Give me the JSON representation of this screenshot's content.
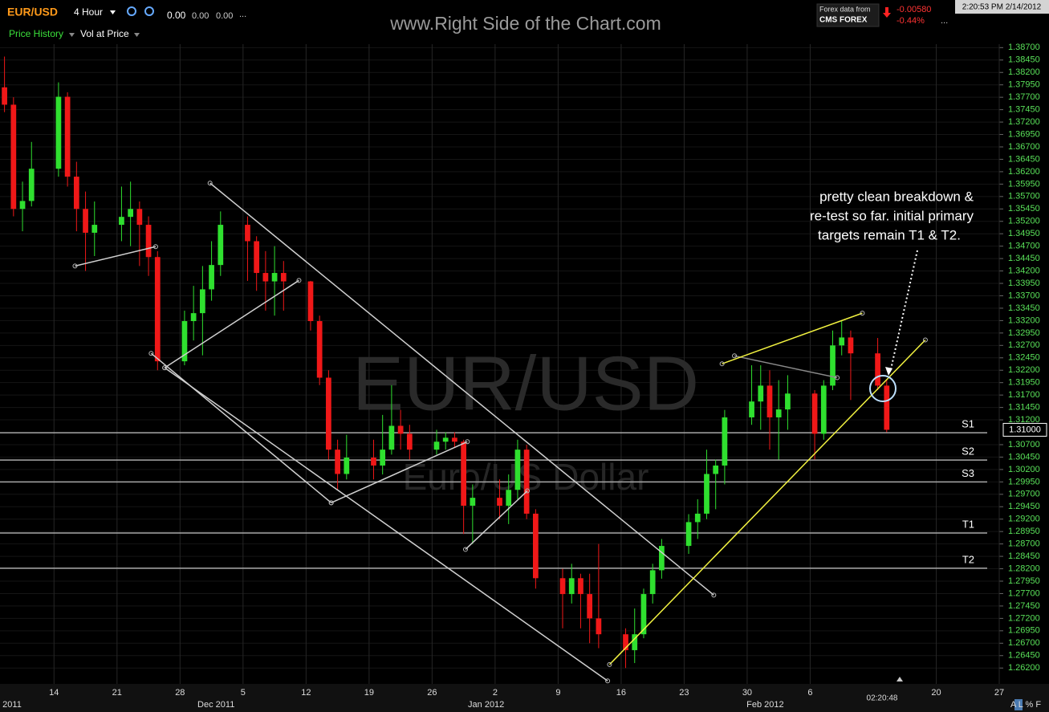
{
  "toolbar": {
    "symbol": "EUR/USD",
    "interval": "4 Hour",
    "stats": [
      "0.00",
      "0.00",
      "0.00",
      "..."
    ],
    "tab_price": "Price History",
    "tab_vol": "Vol at Price",
    "site": "www.Right Side of the Chart.com",
    "data_from": "Forex data from",
    "provider": "CMS FOREX",
    "change": "-0.00580",
    "change_pct": "-0.44%",
    "more": "...",
    "clock": "2:20:53 PM 2/14/2012"
  },
  "chart_data": {
    "type": "candlestick",
    "watermark": "EUR/USD",
    "watermark_sub": "Euro/US Dollar",
    "xlim": [
      "2011-11-08",
      "2012-02-27"
    ],
    "ylim": [
      1.2588,
      1.3877
    ],
    "xticks": [
      {
        "value": "2011-11-14",
        "label": "14"
      },
      {
        "value": "2011-11-21",
        "label": "21"
      },
      {
        "value": "2011-11-28",
        "label": "28"
      },
      {
        "value": "2011-12-05",
        "label": "5"
      },
      {
        "value": "2011-12-12",
        "label": "12"
      },
      {
        "value": "2011-12-19",
        "label": "19"
      },
      {
        "value": "2011-12-26",
        "label": "26"
      },
      {
        "value": "2012-01-02",
        "label": "2"
      },
      {
        "value": "2012-01-09",
        "label": "9"
      },
      {
        "value": "2012-01-16",
        "label": "16"
      },
      {
        "value": "2012-01-23",
        "label": "23"
      },
      {
        "value": "2012-01-30",
        "label": "30"
      },
      {
        "value": "2012-02-06",
        "label": "6"
      },
      {
        "value": "2012-02-20",
        "label": "20"
      },
      {
        "value": "2012-02-27",
        "label": "27"
      }
    ],
    "month_labels": [
      {
        "value": "2011-11-09",
        "label": "2011"
      },
      {
        "value": "2011-12-02",
        "label": "Dec 2011"
      },
      {
        "value": "2012-01-01",
        "label": "Jan 2012"
      },
      {
        "value": "2012-02-01",
        "label": "Feb 2012"
      }
    ],
    "yticks": [
      {
        "value": 1.387,
        "label": "1.38700"
      },
      {
        "value": 1.3845,
        "label": "1.38450"
      },
      {
        "value": 1.382,
        "label": "1.38200"
      },
      {
        "value": 1.3795,
        "label": "1.37950"
      },
      {
        "value": 1.377,
        "label": "1.37700"
      },
      {
        "value": 1.3745,
        "label": "1.37450"
      },
      {
        "value": 1.372,
        "label": "1.37200"
      },
      {
        "value": 1.3695,
        "label": "1.36950"
      },
      {
        "value": 1.367,
        "label": "1.36700"
      },
      {
        "value": 1.3645,
        "label": "1.36450"
      },
      {
        "value": 1.362,
        "label": "1.36200"
      },
      {
        "value": 1.3595,
        "label": "1.35950"
      },
      {
        "value": 1.357,
        "label": "1.35700"
      },
      {
        "value": 1.3545,
        "label": "1.35450"
      },
      {
        "value": 1.352,
        "label": "1.35200"
      },
      {
        "value": 1.3495,
        "label": "1.34950"
      },
      {
        "value": 1.347,
        "label": "1.34700"
      },
      {
        "value": 1.3445,
        "label": "1.34450"
      },
      {
        "value": 1.342,
        "label": "1.34200"
      },
      {
        "value": 1.3395,
        "label": "1.33950"
      },
      {
        "value": 1.337,
        "label": "1.33700"
      },
      {
        "value": 1.3345,
        "label": "1.33450"
      },
      {
        "value": 1.332,
        "label": "1.33200"
      },
      {
        "value": 1.3295,
        "label": "1.32950"
      },
      {
        "value": 1.327,
        "label": "1.32700"
      },
      {
        "value": 1.3245,
        "label": "1.32450"
      },
      {
        "value": 1.322,
        "label": "1.32200"
      },
      {
        "value": 1.3195,
        "label": "1.31950"
      },
      {
        "value": 1.317,
        "label": "1.31700"
      },
      {
        "value": 1.3145,
        "label": "1.31450"
      },
      {
        "value": 1.312,
        "label": "1.31200"
      },
      {
        "value": 1.307,
        "label": "1.30700"
      },
      {
        "value": 1.3045,
        "label": "1.30450"
      },
      {
        "value": 1.302,
        "label": "1.30200"
      },
      {
        "value": 1.2995,
        "label": "1.29950"
      },
      {
        "value": 1.297,
        "label": "1.29700"
      },
      {
        "value": 1.2945,
        "label": "1.29450"
      },
      {
        "value": 1.292,
        "label": "1.29200"
      },
      {
        "value": 1.2895,
        "label": "1.28950"
      },
      {
        "value": 1.287,
        "label": "1.28700"
      },
      {
        "value": 1.2845,
        "label": "1.28450"
      },
      {
        "value": 1.282,
        "label": "1.28200"
      },
      {
        "value": 1.2795,
        "label": "1.27950"
      },
      {
        "value": 1.277,
        "label": "1.27700"
      },
      {
        "value": 1.2745,
        "label": "1.27450"
      },
      {
        "value": 1.272,
        "label": "1.27200"
      },
      {
        "value": 1.2695,
        "label": "1.26950"
      },
      {
        "value": 1.267,
        "label": "1.26700"
      },
      {
        "value": 1.2645,
        "label": "1.26450"
      },
      {
        "value": 1.262,
        "label": "1.26200"
      }
    ],
    "last_price": {
      "value": 1.31,
      "label": "1.31000"
    },
    "up_color": "#2fe02f",
    "down_color": "#f01818",
    "candles": {
      "x": [
        "2011-11-08",
        "2011-11-09",
        "2011-11-10",
        "2011-11-11",
        "2011-11-14",
        "2011-11-15",
        "2011-11-16",
        "2011-11-17",
        "2011-11-18",
        "2011-11-21",
        "2011-11-22",
        "2011-11-23",
        "2011-11-24",
        "2011-11-25",
        "2011-11-28",
        "2011-11-29",
        "2011-11-30",
        "2011-12-01",
        "2011-12-02",
        "2011-12-05",
        "2011-12-06",
        "2011-12-07",
        "2011-12-08",
        "2011-12-09",
        "2011-12-12",
        "2011-12-13",
        "2011-12-14",
        "2011-12-15",
        "2011-12-16",
        "2011-12-19",
        "2011-12-20",
        "2011-12-21",
        "2011-12-22",
        "2011-12-23",
        "2011-12-26",
        "2011-12-27",
        "2011-12-28",
        "2011-12-29",
        "2011-12-30",
        "2012-01-02",
        "2012-01-03",
        "2012-01-04",
        "2012-01-05",
        "2012-01-06",
        "2012-01-09",
        "2012-01-10",
        "2012-01-11",
        "2012-01-12",
        "2012-01-13",
        "2012-01-16",
        "2012-01-17",
        "2012-01-18",
        "2012-01-19",
        "2012-01-20",
        "2012-01-23",
        "2012-01-24",
        "2012-01-25",
        "2012-01-26",
        "2012-01-27",
        "2012-01-30",
        "2012-01-31",
        "2012-02-01",
        "2012-02-02",
        "2012-02-03",
        "2012-02-06",
        "2012-02-07",
        "2012-02-08",
        "2012-02-09",
        "2012-02-10",
        "2012-02-13",
        "2012-02-14"
      ],
      "open": [
        1.379,
        1.3755,
        1.3545,
        1.3561,
        1.3626,
        1.3771,
        1.361,
        1.3545,
        1.3497,
        1.3513,
        1.3529,
        1.3545,
        1.3513,
        1.3448,
        1.3238,
        1.3319,
        1.3335,
        1.3383,
        1.3432,
        1.3513,
        1.348,
        1.3416,
        1.3399,
        1.3416,
        1.3399,
        1.3319,
        1.3205,
        1.306,
        1.3011,
        1.3044,
        1.3028,
        1.306,
        1.3108,
        1.3092,
        1.306,
        1.3076,
        1.3084,
        1.3076,
        1.2947,
        1.2963,
        1.2947,
        1.2979,
        1.306,
        1.2931,
        1.2801,
        1.2769,
        1.2801,
        1.2769,
        1.272,
        1.2688,
        1.2656,
        1.2688,
        1.2769,
        1.2817,
        1.2866,
        1.2914,
        1.2931,
        1.3011,
        1.3028,
        1.3125,
        1.3157,
        1.3189,
        1.3125,
        1.3141,
        1.3173,
        1.3092,
        1.3189,
        1.327,
        1.3286,
        1.3254,
        1.3189
      ],
      "high": [
        1.3852,
        1.377,
        1.36,
        1.368,
        1.38,
        1.378,
        1.364,
        1.358,
        1.356,
        1.359,
        1.36,
        1.356,
        1.353,
        1.346,
        1.334,
        1.339,
        1.343,
        1.348,
        1.354,
        1.353,
        1.349,
        1.346,
        1.347,
        1.344,
        1.34,
        1.333,
        1.322,
        1.308,
        1.309,
        1.308,
        1.313,
        1.319,
        1.314,
        1.311,
        1.31,
        1.3095,
        1.3095,
        1.308,
        1.299,
        1.3,
        1.301,
        1.308,
        1.307,
        1.294,
        1.282,
        1.283,
        1.281,
        1.281,
        1.287,
        1.27,
        1.274,
        1.278,
        1.283,
        1.288,
        1.293,
        1.296,
        1.306,
        1.304,
        1.314,
        1.323,
        1.323,
        1.322,
        1.32,
        1.321,
        1.318,
        1.32,
        1.33,
        1.332,
        1.33,
        1.3285,
        1.32
      ],
      "low": [
        1.374,
        1.353,
        1.35,
        1.355,
        1.361,
        1.359,
        1.35,
        1.342,
        1.345,
        1.348,
        1.347,
        1.343,
        1.341,
        1.322,
        1.323,
        1.328,
        1.325,
        1.336,
        1.341,
        1.34,
        1.338,
        1.334,
        1.333,
        1.334,
        1.33,
        1.319,
        1.304,
        1.298,
        1.3,
        1.3,
        1.301,
        1.305,
        1.306,
        1.304,
        1.305,
        1.306,
        1.3065,
        1.289,
        1.287,
        1.292,
        1.291,
        1.296,
        1.292,
        1.278,
        1.27,
        1.275,
        1.27,
        1.267,
        1.266,
        1.262,
        1.263,
        1.268,
        1.275,
        1.28,
        1.285,
        1.288,
        1.292,
        1.294,
        1.299,
        1.311,
        1.31,
        1.306,
        1.304,
        1.31,
        1.304,
        1.308,
        1.318,
        1.325,
        1.316,
        1.318,
        1.3095
      ],
      "close": [
        1.3755,
        1.3545,
        1.3561,
        1.3626,
        1.3771,
        1.361,
        1.3545,
        1.3497,
        1.3513,
        1.3529,
        1.3545,
        1.3513,
        1.3448,
        1.3238,
        1.3319,
        1.3335,
        1.3383,
        1.3432,
        1.3513,
        1.348,
        1.3416,
        1.3399,
        1.3416,
        1.3399,
        1.3319,
        1.3205,
        1.306,
        1.3011,
        1.3044,
        1.3028,
        1.306,
        1.3108,
        1.3092,
        1.306,
        1.3076,
        1.3084,
        1.3076,
        1.2947,
        1.2963,
        1.2947,
        1.2979,
        1.306,
        1.2931,
        1.2801,
        1.2769,
        1.2801,
        1.2769,
        1.272,
        1.2688,
        1.2656,
        1.2688,
        1.2769,
        1.2817,
        1.2866,
        1.2914,
        1.2931,
        1.3011,
        1.3028,
        1.3125,
        1.3157,
        1.3189,
        1.3125,
        1.3141,
        1.3173,
        1.3092,
        1.3189,
        1.327,
        1.3286,
        1.3254,
        1.3189,
        1.31
      ]
    },
    "levels": [
      {
        "label": "S1",
        "value": 1.3094
      },
      {
        "label": "S2",
        "value": 1.3039
      },
      {
        "label": "S3",
        "value": 1.2995
      },
      {
        "label": "T1",
        "value": 1.2892
      },
      {
        "label": "T2",
        "value": 1.2821
      }
    ],
    "level_color": "#a8a8a8",
    "trendlines": [
      {
        "color": "#d0d0d0",
        "x": [
          "2011-11-16T08:00",
          "2011-11-25T07:00"
        ],
        "y": [
          1.343,
          1.3469
        ]
      },
      {
        "color": "#d0d0d0",
        "x": [
          "2011-11-24T19:00",
          "2011-12-14T19:00"
        ],
        "y": [
          1.3254,
          1.2953
        ]
      },
      {
        "color": "#d0d0d0",
        "x": [
          "2011-11-26T07:00",
          "2011-12-11T05:00"
        ],
        "y": [
          1.3225,
          1.3401
        ]
      },
      {
        "color": "#d0d0d0",
        "x": [
          "2011-12-14T19:00",
          "2011-12-29T22:00"
        ],
        "y": [
          1.2953,
          1.3076
        ]
      },
      {
        "color": "#d0d0d0",
        "x": [
          "2011-12-29T17:00",
          "2012-01-05T14:00"
        ],
        "y": [
          1.2859,
          1.2977
        ]
      },
      {
        "color": "#d0d0d0",
        "x": [
          "2011-12-01T08:00",
          "2012-01-26T07:00"
        ],
        "y": [
          1.3597,
          1.2767
        ]
      },
      {
        "color": "#d0d0d0",
        "x": [
          "2011-11-26T07:00",
          "2012-01-14T12:00"
        ],
        "y": [
          1.3225,
          1.2594
        ]
      },
      {
        "color": "#8a8a8a",
        "x": [
          "2012-01-28T14:00",
          "2012-02-09T00:00"
        ],
        "y": [
          1.3249,
          1.3205
        ]
      },
      {
        "color": "#f2f240",
        "x": [
          "2012-01-14T17:00",
          "2012-02-18T19:00"
        ],
        "y": [
          1.2627,
          1.3281
        ]
      },
      {
        "color": "#f2f240",
        "x": [
          "2012-01-27T05:00",
          "2012-02-11T19:00"
        ],
        "y": [
          1.3233,
          1.3335
        ]
      }
    ],
    "note": [
      "pretty clean breakdown &",
      "re-test so far.  initial primary",
      "targets remain T1 & T2."
    ],
    "footer_time": "02:20:48",
    "footer_buttons": "A L % F"
  }
}
